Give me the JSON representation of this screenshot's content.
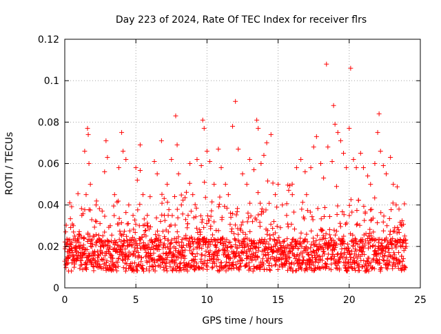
{
  "chart_data": {
    "type": "scatter",
    "title": "Day 223 of 2024, Rate Of TEC Index for receiver flrs",
    "xlabel": "GPS time / hours",
    "ylabel": "ROTI / TECUs",
    "xlim": [
      0,
      25
    ],
    "ylim": [
      0,
      0.12
    ],
    "xticks": [
      0,
      5,
      10,
      15,
      20,
      25
    ],
    "xtick_labels": [
      "0",
      "5",
      "10",
      "15",
      "20",
      "25"
    ],
    "yticks": [
      0,
      0.02,
      0.04,
      0.06,
      0.08,
      0.1,
      0.12
    ],
    "ytick_labels": [
      "0",
      "0.02",
      "0.04",
      "0.06",
      "0.08",
      "0.1",
      "0.12"
    ],
    "grid": true,
    "marker": "plus",
    "marker_color": "#ff0000",
    "data_range_x": [
      0,
      24
    ],
    "series": [
      {
        "points": [
          [
            0.1,
            0.012
          ],
          [
            0.2,
            0.015
          ],
          [
            0.3,
            0.02
          ],
          [
            0.35,
            0.041
          ],
          [
            0.5,
            0.018
          ],
          [
            0.6,
            0.03
          ],
          [
            0.7,
            0.025
          ],
          [
            0.8,
            0.013
          ],
          [
            1.0,
            0.022
          ],
          [
            1.2,
            0.035
          ],
          [
            1.4,
            0.066
          ],
          [
            1.5,
            0.045
          ],
          [
            1.6,
            0.077
          ],
          [
            1.65,
            0.074
          ],
          [
            1.7,
            0.06
          ],
          [
            1.8,
            0.05
          ],
          [
            2.0,
            0.025
          ],
          [
            2.2,
            0.04
          ],
          [
            2.5,
            0.02
          ],
          [
            2.8,
            0.056
          ],
          [
            2.9,
            0.071
          ],
          [
            3.0,
            0.063
          ],
          [
            3.2,
            0.03
          ],
          [
            3.5,
            0.045
          ],
          [
            3.8,
            0.058
          ],
          [
            4.0,
            0.075
          ],
          [
            4.1,
            0.066
          ],
          [
            4.3,
            0.062
          ],
          [
            4.5,
            0.04
          ],
          [
            4.8,
            0.035
          ],
          [
            5.0,
            0.058
          ],
          [
            5.1,
            0.052
          ],
          [
            5.3,
            0.069
          ],
          [
            5.5,
            0.045
          ],
          [
            5.8,
            0.03
          ],
          [
            6.0,
            0.044
          ],
          [
            6.3,
            0.061
          ],
          [
            6.5,
            0.055
          ],
          [
            6.8,
            0.071
          ],
          [
            7.0,
            0.035
          ],
          [
            7.2,
            0.05
          ],
          [
            7.5,
            0.062
          ],
          [
            7.8,
            0.083
          ],
          [
            7.9,
            0.069
          ],
          [
            8.0,
            0.055
          ],
          [
            8.2,
            0.04
          ],
          [
            8.5,
            0.033
          ],
          [
            8.8,
            0.06
          ],
          [
            9.0,
            0.045
          ],
          [
            9.3,
            0.062
          ],
          [
            9.6,
            0.059
          ],
          [
            9.7,
            0.081
          ],
          [
            9.8,
            0.077
          ],
          [
            10.0,
            0.066
          ],
          [
            10.2,
            0.061
          ],
          [
            10.5,
            0.05
          ],
          [
            10.8,
            0.067
          ],
          [
            11.0,
            0.058
          ],
          [
            11.3,
            0.05
          ],
          [
            11.5,
            0.045
          ],
          [
            11.8,
            0.078
          ],
          [
            12.0,
            0.09
          ],
          [
            12.2,
            0.067
          ],
          [
            12.5,
            0.055
          ],
          [
            12.8,
            0.05
          ],
          [
            13.0,
            0.062
          ],
          [
            13.3,
            0.057
          ],
          [
            13.5,
            0.081
          ],
          [
            13.6,
            0.077
          ],
          [
            13.8,
            0.06
          ],
          [
            14.0,
            0.064
          ],
          [
            14.2,
            0.07
          ],
          [
            14.5,
            0.074
          ],
          [
            14.8,
            0.045
          ],
          [
            15.0,
            0.05
          ],
          [
            15.3,
            0.04
          ],
          [
            15.6,
            0.035
          ],
          [
            16.0,
            0.045
          ],
          [
            16.3,
            0.058
          ],
          [
            16.6,
            0.062
          ],
          [
            16.9,
            0.056
          ],
          [
            17.0,
            0.045
          ],
          [
            17.3,
            0.058
          ],
          [
            17.5,
            0.068
          ],
          [
            17.7,
            0.073
          ],
          [
            18.0,
            0.06
          ],
          [
            18.2,
            0.053
          ],
          [
            18.4,
            0.108
          ],
          [
            18.5,
            0.068
          ],
          [
            18.8,
            0.061
          ],
          [
            18.9,
            0.088
          ],
          [
            19.0,
            0.079
          ],
          [
            19.2,
            0.075
          ],
          [
            19.4,
            0.071
          ],
          [
            19.6,
            0.065
          ],
          [
            19.8,
            0.058
          ],
          [
            20.0,
            0.077
          ],
          [
            20.1,
            0.106
          ],
          [
            20.3,
            0.062
          ],
          [
            20.5,
            0.058
          ],
          [
            20.8,
            0.065
          ],
          [
            21.0,
            0.058
          ],
          [
            21.3,
            0.054
          ],
          [
            21.5,
            0.05
          ],
          [
            21.8,
            0.06
          ],
          [
            22.0,
            0.075
          ],
          [
            22.1,
            0.084
          ],
          [
            22.2,
            0.066
          ],
          [
            22.4,
            0.059
          ],
          [
            22.6,
            0.055
          ],
          [
            22.9,
            0.063
          ],
          [
            23.1,
            0.05
          ],
          [
            23.3,
            0.04
          ],
          [
            23.5,
            0.038
          ],
          [
            23.7,
            0.03
          ],
          [
            23.9,
            0.025
          ],
          [
            24.0,
            0.02
          ]
        ]
      }
    ]
  }
}
